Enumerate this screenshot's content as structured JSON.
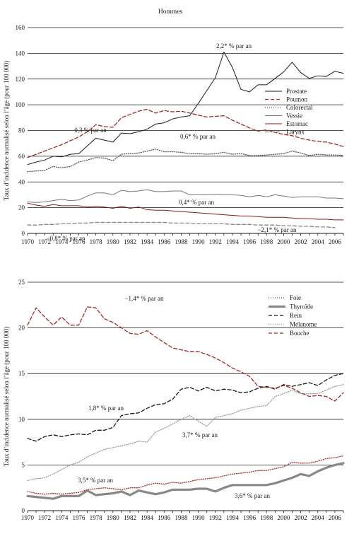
{
  "chart_data": [
    {
      "type": "line",
      "title": "Hommes",
      "xlabel": "",
      "ylabel": "Taux d’incidence normalisé selon l’âge (pour 100 000)",
      "xlim": [
        1970,
        2007
      ],
      "ylim": [
        0,
        160
      ],
      "yticks": [
        0,
        20,
        40,
        60,
        80,
        100,
        120,
        140,
        160
      ],
      "xticks": [
        1970,
        1972,
        1974,
        1976,
        1978,
        1980,
        1982,
        1984,
        1986,
        1988,
        1990,
        1992,
        1994,
        1996,
        1998,
        2000,
        2002,
        2004,
        2006
      ],
      "grid": "horizontal",
      "legend_position": "right",
      "series": [
        {
          "name": "Prostate",
          "color": "#1a1a1a",
          "style": "solid",
          "x": [
            1970,
            1971,
            1972,
            1973,
            1974,
            1975,
            1976,
            1977,
            1978,
            1979,
            1980,
            1981,
            1982,
            1983,
            1984,
            1985,
            1986,
            1987,
            1988,
            1989,
            1990,
            1991,
            1992,
            1993,
            1994,
            1995,
            1996,
            1997,
            1998,
            1999,
            2000,
            2001,
            2002,
            2003,
            2004,
            2005,
            2006,
            2007
          ],
          "values": [
            53.5,
            55.5,
            57,
            60,
            59.5,
            61.5,
            62,
            68,
            74,
            72.5,
            71,
            78,
            77.5,
            79,
            81,
            85,
            86,
            89,
            90.5,
            91.5,
            101,
            111,
            121,
            141,
            129,
            112,
            110,
            115.5,
            115.5,
            120.5,
            125.5,
            133,
            125,
            120.5,
            122.5,
            122,
            126,
            124.5
          ]
        },
        {
          "name": "Poumon",
          "color": "#a52a2a",
          "style": "dashed",
          "x": [
            1970,
            1971,
            1972,
            1973,
            1974,
            1975,
            1976,
            1977,
            1978,
            1979,
            1980,
            1981,
            1982,
            1983,
            1984,
            1985,
            1986,
            1987,
            1988,
            1989,
            1990,
            1991,
            1992,
            1993,
            1994,
            1995,
            1996,
            1997,
            1998,
            1999,
            2000,
            2001,
            2002,
            2003,
            2004,
            2005,
            2006,
            2007
          ],
          "values": [
            59,
            61.5,
            64,
            66.5,
            69,
            72,
            75,
            79,
            84.5,
            83,
            82.5,
            90,
            92.5,
            95,
            96.5,
            93.5,
            95.5,
            94.5,
            95,
            93.5,
            92,
            90.5,
            91,
            91.5,
            88,
            85,
            82,
            79.5,
            80.5,
            78.5,
            77,
            76,
            74,
            72.5,
            71.5,
            71,
            69.5,
            67.5
          ]
        },
        {
          "name": "Colorectal",
          "color": "#555555",
          "style": "dotted",
          "x": [
            1970,
            1971,
            1972,
            1973,
            1974,
            1975,
            1976,
            1977,
            1978,
            1979,
            1980,
            1981,
            1982,
            1983,
            1984,
            1985,
            1986,
            1987,
            1988,
            1989,
            1990,
            1991,
            1992,
            1993,
            1994,
            1995,
            1996,
            1997,
            1998,
            1999,
            2000,
            2001,
            2002,
            2003,
            2004,
            2005,
            2006,
            2007
          ],
          "values": [
            48,
            48.5,
            49,
            52,
            51,
            52,
            55.5,
            57,
            59,
            58.5,
            56.5,
            61.5,
            62,
            62.5,
            64,
            65.5,
            63.5,
            63.5,
            63,
            62,
            62,
            61.5,
            62,
            63,
            61.5,
            62,
            60.5,
            60.5,
            61,
            61.5,
            62,
            64,
            62.5,
            60.5,
            61.5,
            61,
            61,
            60.5
          ]
        },
        {
          "name": "Vessie",
          "color": "#777777",
          "style": "solid",
          "x": [
            1970,
            1971,
            1972,
            1973,
            1974,
            1975,
            1976,
            1977,
            1978,
            1979,
            1980,
            1981,
            1982,
            1983,
            1984,
            1985,
            1986,
            1987,
            1988,
            1989,
            1990,
            1991,
            1992,
            1993,
            1994,
            1995,
            1996,
            1997,
            1998,
            1999,
            2000,
            2001,
            2002,
            2003,
            2004,
            2005,
            2006,
            2007
          ],
          "values": [
            24.5,
            24,
            24.5,
            25.5,
            26.5,
            25.5,
            26,
            29,
            31.5,
            31.5,
            30,
            33.5,
            32.5,
            33,
            34,
            32.5,
            32.5,
            33,
            33,
            30,
            30,
            30,
            30.5,
            30,
            30,
            29.5,
            28.5,
            29.5,
            28.5,
            30,
            29,
            28,
            28.5,
            28.5,
            28.5,
            27.5,
            27.5,
            27
          ]
        },
        {
          "name": "Estomac",
          "color": "#8b1a1a",
          "style": "solid",
          "x": [
            1970,
            1971,
            1972,
            1973,
            1974,
            1975,
            1976,
            1977,
            1978,
            1979,
            1980,
            1981,
            1982,
            1983,
            1984,
            1985,
            1986,
            1987,
            1988,
            1989,
            1990,
            1991,
            1992,
            1993,
            1994,
            1995,
            1996,
            1997,
            1998,
            1999,
            2000,
            2001,
            2002,
            2003,
            2004,
            2005,
            2006,
            2007
          ],
          "values": [
            23.5,
            22,
            21,
            22.5,
            21.5,
            21.5,
            21.5,
            20.5,
            21,
            20.5,
            19.5,
            21,
            19.5,
            20.5,
            18.5,
            18,
            18,
            17.5,
            17,
            16.5,
            16,
            15.5,
            15,
            14.5,
            14,
            13.5,
            13.5,
            13,
            12.5,
            12.5,
            12.5,
            12,
            11.5,
            11.5,
            11,
            11,
            10.5,
            10.5
          ]
        },
        {
          "name": "Larynx",
          "color": "#888888",
          "style": "dashed",
          "x": [
            1970,
            1971,
            1972,
            1973,
            1974,
            1975,
            1976,
            1977,
            1978,
            1979,
            1980,
            1981,
            1982,
            1983,
            1984,
            1985,
            1986,
            1987,
            1988,
            1989,
            1990,
            1991,
            1992,
            1993,
            1994,
            1995,
            1996,
            1997,
            1998,
            1999,
            2000,
            2001,
            2002,
            2003,
            2004,
            2005,
            2006
          ],
          "values": [
            6.5,
            6.5,
            7,
            7,
            7.5,
            7.5,
            8,
            8,
            8.5,
            8.5,
            8.5,
            8.5,
            8.5,
            8.5,
            8.5,
            8.5,
            8.5,
            8,
            8,
            8,
            7.5,
            7.5,
            7.5,
            7.5,
            7,
            7,
            7,
            6.5,
            6.5,
            6.5,
            6,
            6,
            5.5,
            5.5,
            5,
            5,
            4.5
          ]
        }
      ],
      "annotations": [
        "2,2* % par an",
        "0,3 % par an",
        "0,6* % par an",
        "0,4* % par an",
        "−0,8* % par an",
        "−2,1* % par an"
      ]
    },
    {
      "type": "line",
      "title": "",
      "xlabel": "",
      "ylabel": "Taux d’incidence normalisé selon l’âge (pour 100 000)",
      "xlim": [
        1970,
        2007
      ],
      "ylim": [
        0,
        25
      ],
      "yticks": [
        0,
        5,
        10,
        15,
        20,
        25
      ],
      "xticks": [
        1970,
        1972,
        1974,
        1976,
        1978,
        1980,
        1982,
        1984,
        1986,
        1988,
        1990,
        1992,
        1994,
        1996,
        1998,
        2000,
        2002,
        2004,
        2006
      ],
      "grid": "horizontal",
      "legend_position": "top-right",
      "series": [
        {
          "name": "Foie",
          "color": "#a52a2a",
          "style": "dotted",
          "x": [
            1970,
            1971,
            1972,
            1973,
            1974,
            1975,
            1976,
            1977,
            1978,
            1979,
            1980,
            1981,
            1982,
            1983,
            1984,
            1985,
            1986,
            1987,
            1988,
            1989,
            1990,
            1991,
            1992,
            1993,
            1994,
            1995,
            1996,
            1997,
            1998,
            1999,
            2000,
            2001,
            2002,
            2003,
            2004,
            2005,
            2006,
            2007
          ],
          "values": [
            2.1,
            1.9,
            1.8,
            1.9,
            1.8,
            1.9,
            2.0,
            2.3,
            2.4,
            2.5,
            2.4,
            2.3,
            2.5,
            2.5,
            2.8,
            3.0,
            2.9,
            3.1,
            3.0,
            3.2,
            3.4,
            3.5,
            3.6,
            3.8,
            4.0,
            4.1,
            4.2,
            4.4,
            4.4,
            4.6,
            4.8,
            5.3,
            5.2,
            5.2,
            5.4,
            5.7,
            5.8,
            6.0
          ]
        },
        {
          "name": "Thyroïde",
          "color": "#888888",
          "style": "thick",
          "x": [
            1970,
            1971,
            1972,
            1973,
            1974,
            1975,
            1976,
            1977,
            1978,
            1979,
            1980,
            1981,
            1982,
            1983,
            1984,
            1985,
            1986,
            1987,
            1988,
            1989,
            1990,
            1991,
            1992,
            1993,
            1994,
            1995,
            1996,
            1997,
            1998,
            1999,
            2000,
            2001,
            2002,
            2003,
            2004,
            2005,
            2006,
            2007
          ],
          "values": [
            1.6,
            1.5,
            1.4,
            1.3,
            1.6,
            1.6,
            1.6,
            2.2,
            1.7,
            1.8,
            1.9,
            2.1,
            1.7,
            2.2,
            2.0,
            1.8,
            2.0,
            2.3,
            2.3,
            2.3,
            2.4,
            2.4,
            2.1,
            2.5,
            2.8,
            2.8,
            2.8,
            2.8,
            2.8,
            3.0,
            3.3,
            3.6,
            4.0,
            3.8,
            4.3,
            4.7,
            5.0,
            5.2
          ]
        },
        {
          "name": "Rein",
          "color": "#1a1a1a",
          "style": "dashed",
          "x": [
            1970,
            1971,
            1972,
            1973,
            1974,
            1975,
            1976,
            1977,
            1978,
            1979,
            1980,
            1981,
            1982,
            1983,
            1984,
            1985,
            1986,
            1987,
            1988,
            1989,
            1990,
            1991,
            1992,
            1993,
            1994,
            1995,
            1996,
            1997,
            1998,
            1999,
            2000,
            2001,
            2002,
            2003,
            2004,
            2005,
            2006,
            2007
          ],
          "values": [
            7.9,
            7.6,
            8.1,
            8.3,
            8.1,
            8.3,
            8.4,
            8.3,
            8.8,
            8.8,
            9.1,
            10.4,
            10.6,
            10.7,
            11.2,
            11.6,
            11.7,
            12.2,
            13.3,
            13.5,
            13.1,
            13.5,
            13.1,
            13.3,
            13.2,
            12.9,
            13.0,
            13.4,
            13.6,
            13.3,
            13.8,
            13.6,
            13.8,
            14.0,
            13.7,
            14.3,
            14.8,
            15.0
          ]
        },
        {
          "name": "Mélanome",
          "color": "#999999",
          "style": "dotted",
          "x": [
            1970,
            1971,
            1972,
            1973,
            1974,
            1975,
            1976,
            1977,
            1978,
            1979,
            1980,
            1981,
            1982,
            1983,
            1984,
            1985,
            1986,
            1987,
            1988,
            1989,
            1990,
            1991,
            1992,
            1993,
            1994,
            1995,
            1996,
            1997,
            1998,
            1999,
            2000,
            2001,
            2002,
            2003,
            2004,
            2005,
            2006,
            2007
          ],
          "values": [
            3.3,
            3.5,
            3.6,
            4.0,
            4.5,
            5.0,
            5.3,
            5.9,
            6.3,
            6.7,
            6.9,
            7.1,
            7.3,
            7.6,
            7.5,
            8.6,
            9.0,
            9.5,
            10.0,
            10.4,
            9.8,
            9.2,
            10.2,
            10.4,
            10.6,
            11.0,
            11.2,
            11.4,
            11.5,
            12.5,
            12.8,
            13.2,
            12.8,
            12.8,
            12.8,
            13.2,
            13.6,
            13.8
          ]
        },
        {
          "name": "Bouche",
          "color": "#a52a2a",
          "style": "dashed",
          "x": [
            1970,
            1971,
            1972,
            1973,
            1974,
            1975,
            1976,
            1977,
            1978,
            1979,
            1980,
            1981,
            1982,
            1983,
            1984,
            1985,
            1986,
            1987,
            1988,
            1989,
            1990,
            1991,
            1992,
            1993,
            1994,
            1995,
            1996,
            1997,
            1998,
            1999,
            2000,
            2001,
            2002,
            2003,
            2004,
            2005,
            2006,
            2007
          ],
          "values": [
            20.3,
            22.2,
            21.2,
            20.3,
            21.2,
            20.3,
            20.3,
            22.3,
            22.2,
            21.0,
            20.6,
            20.0,
            19.4,
            19.3,
            19.7,
            19.0,
            18.4,
            17.8,
            17.6,
            17.4,
            17.4,
            17.1,
            16.7,
            16.2,
            15.6,
            15.2,
            14.7,
            13.6,
            13.5,
            13.4,
            13.7,
            13.4,
            12.9,
            12.5,
            12.6,
            12.5,
            12.0,
            12.9
          ]
        }
      ],
      "annotations": [
        "−1,4* % par an",
        "1,8* % par an",
        "3,7* % par an",
        "3,5* % par an",
        "3,6* % par an"
      ]
    }
  ]
}
